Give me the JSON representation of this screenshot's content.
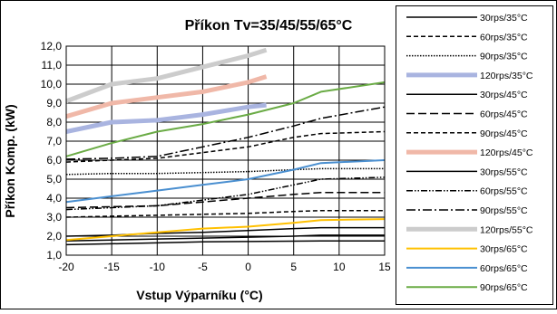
{
  "chart_data": {
    "type": "line",
    "title": "Příkon  Tv=35/45/55/65°C",
    "xlabel": "Vstup Výparníku (°C)",
    "ylabel": "Příkon Komp. (kW)",
    "xlim": [
      -20,
      15
    ],
    "ylim": [
      1.0,
      12.0
    ],
    "x_ticks": [
      "-20",
      "-15",
      "-10",
      "-5",
      "0",
      "5",
      "10",
      "15"
    ],
    "y_ticks": [
      "1,0",
      "2,0",
      "3,0",
      "4,0",
      "5,0",
      "6,0",
      "7,0",
      "8,0",
      "9,0",
      "10,0",
      "11,0",
      "12,0"
    ],
    "grid": true,
    "legend_position": "right",
    "series": [
      {
        "name": "30rps/35°C",
        "color": "#000000",
        "dash": "solid",
        "width": 1.5,
        "x": [
          -20,
          -15,
          -10,
          -5,
          0,
          5,
          8,
          15
        ],
        "y": [
          1.55,
          1.6,
          1.65,
          1.7,
          1.72,
          1.74,
          1.75,
          1.75
        ]
      },
      {
        "name": "60rps/35°C",
        "color": "#000000",
        "dash": "dash",
        "width": 1.5,
        "x": [
          -20,
          -15,
          -10,
          -5,
          0,
          5,
          8,
          15
        ],
        "y": [
          3.0,
          3.05,
          3.1,
          3.15,
          3.2,
          3.3,
          3.35,
          3.35
        ]
      },
      {
        "name": "90rps/35°C",
        "color": "#000000",
        "dash": "dot",
        "width": 1.5,
        "x": [
          -20,
          -15,
          -10,
          -5,
          0,
          5,
          8,
          15
        ],
        "y": [
          5.25,
          5.3,
          5.3,
          5.35,
          5.4,
          5.5,
          5.55,
          5.55
        ]
      },
      {
        "name": "120rps/35°C",
        "color": "#a9b4e0",
        "dash": "solid",
        "width": 5,
        "x": [
          -20,
          -15,
          -10,
          -5,
          0,
          2
        ],
        "y": [
          7.5,
          8.0,
          8.1,
          8.4,
          8.8,
          8.9
        ]
      },
      {
        "name": "30rps/45°C",
        "color": "#000000",
        "dash": "solid",
        "width": 1.5,
        "x": [
          -20,
          -15,
          -10,
          -5,
          0,
          5,
          8,
          15
        ],
        "y": [
          1.75,
          1.8,
          1.85,
          1.9,
          1.95,
          2.0,
          2.05,
          2.05
        ]
      },
      {
        "name": "60rps/45°C",
        "color": "#000000",
        "dash": "longdash",
        "width": 1.5,
        "x": [
          -20,
          -15,
          -10,
          -5,
          0,
          5,
          8,
          15
        ],
        "y": [
          3.5,
          3.55,
          3.6,
          3.8,
          4.0,
          4.2,
          4.3,
          4.3
        ]
      },
      {
        "name": "90rps/45°C",
        "color": "#000000",
        "dash": "dash",
        "width": 1.5,
        "x": [
          -20,
          -15,
          -10,
          -5,
          0,
          5,
          8,
          15
        ],
        "y": [
          5.9,
          6.0,
          6.1,
          6.4,
          6.7,
          7.2,
          7.4,
          7.5
        ]
      },
      {
        "name": "120rps/45°C",
        "color": "#f0b8a8",
        "dash": "solid",
        "width": 5,
        "x": [
          -20,
          -15,
          -10,
          -5,
          0,
          2
        ],
        "y": [
          8.3,
          9.0,
          9.3,
          9.6,
          10.1,
          10.4
        ]
      },
      {
        "name": "30rps/55°C",
        "color": "#000000",
        "dash": "solid",
        "width": 1.5,
        "x": [
          -20,
          -15,
          -10,
          -5,
          0,
          5,
          8,
          15
        ],
        "y": [
          2.0,
          2.05,
          2.15,
          2.2,
          2.3,
          2.4,
          2.45,
          2.45
        ]
      },
      {
        "name": "60rps/55°C",
        "color": "#000000",
        "dash": "dashdotdot",
        "width": 1.5,
        "x": [
          -20,
          -15,
          -10,
          -5,
          0,
          5,
          8,
          15
        ],
        "y": [
          3.4,
          3.5,
          3.6,
          3.9,
          4.2,
          4.7,
          5.0,
          5.1
        ]
      },
      {
        "name": "90rps/55°C",
        "color": "#000000",
        "dash": "dashdot",
        "width": 1.5,
        "x": [
          -20,
          -15,
          -10,
          -5,
          0,
          5,
          8,
          15
        ],
        "y": [
          6.05,
          6.1,
          6.2,
          6.7,
          7.2,
          7.8,
          8.2,
          8.8
        ]
      },
      {
        "name": "120rps/55°C",
        "color": "#cccccc",
        "dash": "solid",
        "width": 5,
        "x": [
          -20,
          -15,
          -10,
          -5,
          0,
          2
        ],
        "y": [
          9.1,
          10.0,
          10.3,
          10.9,
          11.5,
          11.8
        ]
      },
      {
        "name": "30rps/65°C",
        "color": "#ffc000",
        "dash": "solid",
        "width": 2,
        "x": [
          -20,
          -15,
          -10,
          -5,
          0,
          5,
          8,
          15
        ],
        "y": [
          1.8,
          2.0,
          2.2,
          2.4,
          2.5,
          2.7,
          2.85,
          2.9
        ]
      },
      {
        "name": "60rps/65°C",
        "color": "#4a8fd0",
        "dash": "solid",
        "width": 2,
        "x": [
          -20,
          -15,
          -10,
          -5,
          0,
          5,
          8,
          15
        ],
        "y": [
          3.8,
          4.1,
          4.4,
          4.7,
          5.0,
          5.5,
          5.85,
          6.0
        ]
      },
      {
        "name": "90rps/65°C",
        "color": "#6aab45",
        "dash": "solid",
        "width": 2,
        "x": [
          -20,
          -15,
          -10,
          -5,
          0,
          5,
          8,
          15
        ],
        "y": [
          6.2,
          6.9,
          7.5,
          7.9,
          8.4,
          9.0,
          9.6,
          10.1
        ]
      }
    ]
  }
}
